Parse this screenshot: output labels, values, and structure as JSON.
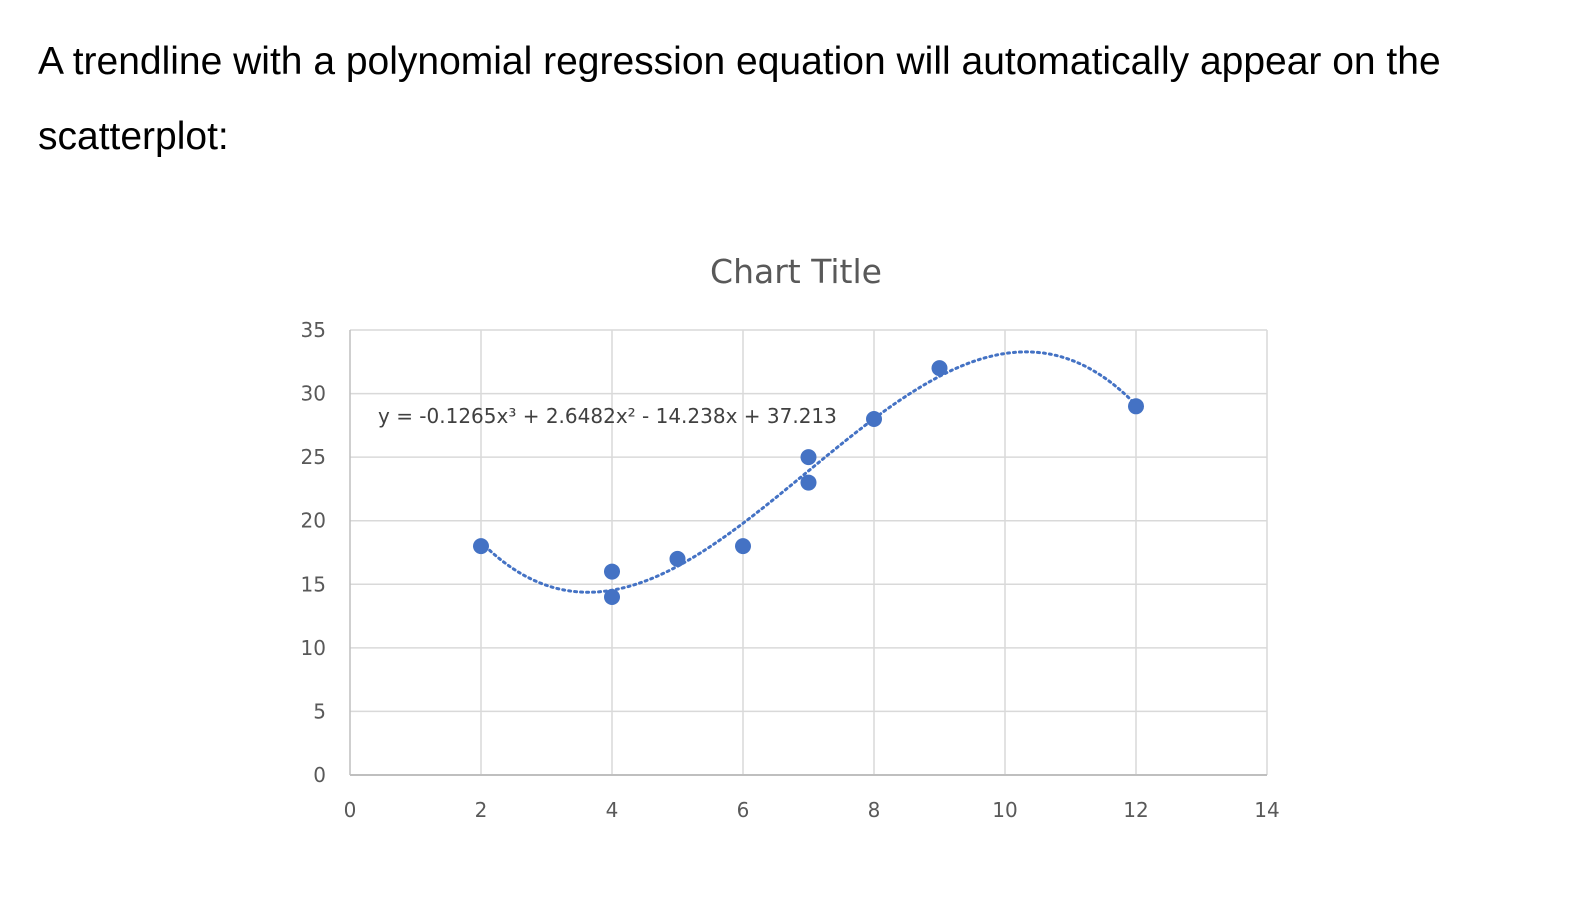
{
  "intro_text": "A trendline with a polynomial regression equation will automatically appear on the scatterplot:",
  "chart_data": {
    "type": "scatter",
    "title": "Chart Title",
    "xlabel": "",
    "ylabel": "",
    "xlim": [
      0,
      14
    ],
    "ylim": [
      0,
      35
    ],
    "x_ticks": [
      0,
      2,
      4,
      6,
      8,
      10,
      12,
      14
    ],
    "y_ticks": [
      0,
      5,
      10,
      15,
      20,
      25,
      30,
      35
    ],
    "grid": true,
    "legend": "none",
    "series": [
      {
        "x": [
          2,
          4,
          4,
          5,
          6,
          7,
          7,
          8,
          9,
          12
        ],
        "y": [
          18,
          16,
          14,
          17,
          18,
          25,
          23,
          28,
          32,
          29
        ],
        "color": "#4472c4"
      }
    ],
    "trendline": {
      "type": "polynomial",
      "order": 3,
      "coefficients": [
        -0.1265,
        2.6482,
        -14.238,
        37.213
      ],
      "x_range": [
        2,
        12
      ],
      "style": "dotted",
      "color": "#4472c4",
      "equation_label": "y = -0.1265x³ + 2.6482x² - 14.238x + 37.213"
    },
    "colors": {
      "grid": "#d9d9d9",
      "axis": "#bfbfbf",
      "tick_text": "#595959",
      "title_text": "#595959"
    }
  }
}
